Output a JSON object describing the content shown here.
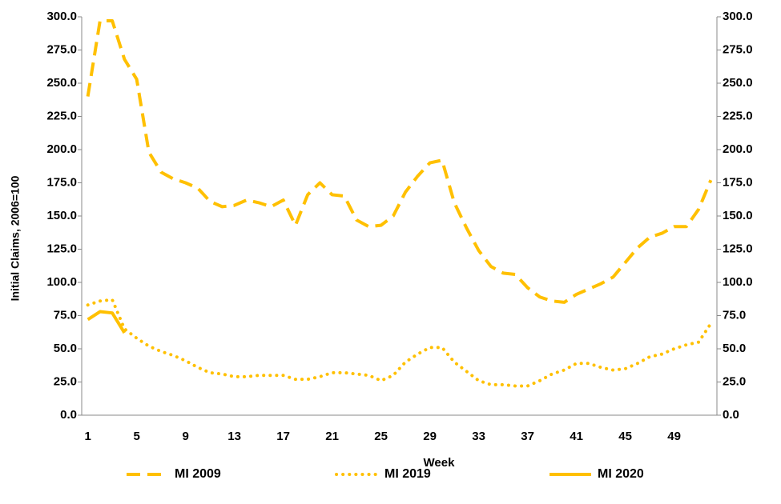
{
  "chart_data": {
    "type": "line",
    "x_label": "Week",
    "y_label": "Initial Claims, 2006=100",
    "categories": [
      "1",
      null,
      null,
      null,
      "5",
      null,
      null,
      null,
      "9",
      null,
      null,
      null,
      "13",
      null,
      null,
      null,
      "17",
      null,
      null,
      null,
      "21",
      null,
      null,
      null,
      "25",
      null,
      null,
      null,
      "29",
      null,
      null,
      null,
      "33",
      null,
      null,
      null,
      "37",
      null,
      null,
      null,
      "41",
      null,
      null,
      null,
      "45",
      null,
      null,
      null,
      "49",
      null,
      null,
      null
    ],
    "series": [
      {
        "name": "MI 2009",
        "color": "#FFC000",
        "dash": "dashed",
        "values": [
          240,
          297,
          297,
          268,
          253,
          198,
          183,
          178,
          175,
          171,
          161,
          157,
          158,
          162,
          160,
          157,
          162,
          143,
          166,
          175,
          166,
          165,
          147,
          142,
          143,
          150,
          168,
          180,
          190,
          192,
          160,
          141,
          124,
          112,
          107,
          106,
          96,
          89,
          86,
          85,
          91,
          95,
          99,
          104,
          115,
          126,
          134,
          137,
          142,
          142,
          155,
          177
        ]
      },
      {
        "name": "MI 2019",
        "color": "#FFC000",
        "dash": "dotted",
        "values": [
          83,
          86,
          87,
          65,
          58,
          52,
          48,
          45,
          41,
          36,
          32,
          31,
          29,
          29,
          30,
          30,
          30,
          27,
          27,
          29,
          32,
          32,
          31,
          30,
          26,
          30,
          40,
          46,
          51,
          51,
          40,
          33,
          26,
          23,
          23,
          22,
          22,
          26,
          31,
          34,
          39,
          39,
          36,
          34,
          35,
          39,
          44,
          46,
          50,
          53,
          55,
          69
        ]
      },
      {
        "name": "MI 2020",
        "color": "#FFC000",
        "dash": "solid",
        "values": [
          72,
          78,
          77,
          62,
          null,
          null,
          null,
          null,
          null,
          null,
          null,
          null,
          null,
          null,
          null,
          null,
          null,
          null,
          null,
          null,
          null,
          null,
          null,
          null,
          null,
          null,
          null,
          null,
          null,
          null,
          null,
          null,
          null,
          null,
          null,
          null,
          null,
          null,
          null,
          null,
          null,
          null,
          null,
          null,
          null,
          null,
          null,
          null,
          null,
          null,
          null,
          null
        ]
      }
    ],
    "ylim": [
      0,
      300
    ],
    "yticks": [
      {
        "value": 0,
        "label": "0.0"
      },
      {
        "value": 25,
        "label": "25.0"
      },
      {
        "value": 50,
        "label": "50.0"
      },
      {
        "value": 75,
        "label": "75.0"
      },
      {
        "value": 100,
        "label": "100.0"
      },
      {
        "value": 125,
        "label": "125.0"
      },
      {
        "value": 150,
        "label": "150.0"
      },
      {
        "value": 175,
        "label": "175.0"
      },
      {
        "value": 200,
        "label": "200.0"
      },
      {
        "value": 225,
        "label": "225.0"
      },
      {
        "value": 250,
        "label": "250.0"
      },
      {
        "value": 275,
        "label": "275.0"
      },
      {
        "value": 300,
        "label": "300.0"
      }
    ],
    "y2lim": [
      0,
      300
    ],
    "y2ticks": [
      {
        "value": 0,
        "label": "0.0"
      },
      {
        "value": 25,
        "label": "25.0"
      },
      {
        "value": 50,
        "label": "50.0"
      },
      {
        "value": 75,
        "label": "75.0"
      },
      {
        "value": 100,
        "label": "100.0"
      },
      {
        "value": 125,
        "label": "125.0"
      },
      {
        "value": 150,
        "label": "150.0"
      },
      {
        "value": 175,
        "label": "175.0"
      },
      {
        "value": 200,
        "label": "200.0"
      },
      {
        "value": 225,
        "label": "225.0"
      },
      {
        "value": 250,
        "label": "250.0"
      },
      {
        "value": 275,
        "label": "275.0"
      },
      {
        "value": 300,
        "label": "300.0"
      }
    ],
    "grid": false,
    "legend": "bottom"
  }
}
